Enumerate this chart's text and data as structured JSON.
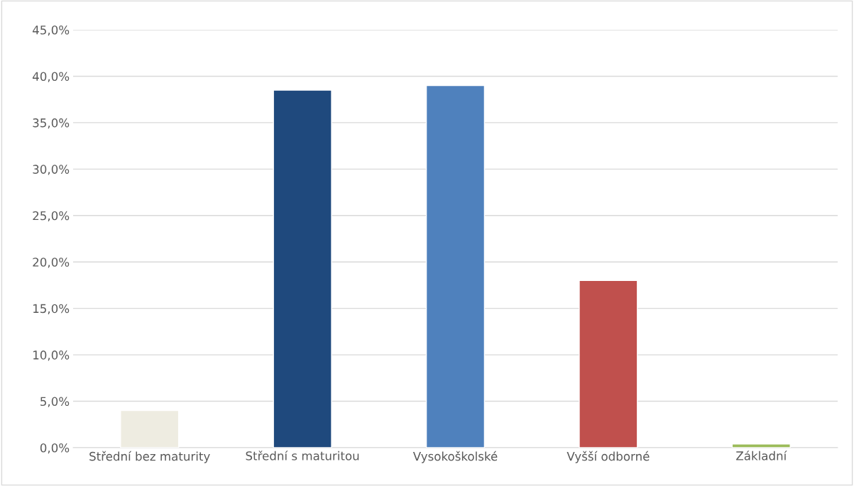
{
  "chart_data": {
    "type": "bar",
    "categories": [
      "Střední bez maturity",
      "Střední s maturitou",
      "Vysokoškolské",
      "Vyšší odborné",
      "Základní"
    ],
    "values": [
      4.0,
      38.5,
      39.0,
      18.0,
      0.4
    ],
    "colors": [
      "#eeece1",
      "#1f497d",
      "#4f81bd",
      "#c0504d",
      "#9bbb59"
    ],
    "ylim": [
      0,
      45
    ],
    "yticks": [
      {
        "value": 0,
        "label": "0,0%"
      },
      {
        "value": 5,
        "label": "5,0%"
      },
      {
        "value": 10,
        "label": "10,0%"
      },
      {
        "value": 15,
        "label": "15,0%"
      },
      {
        "value": 20,
        "label": "20,0%"
      },
      {
        "value": 25,
        "label": "25,0%"
      },
      {
        "value": 30,
        "label": "30,0%"
      },
      {
        "value": 35,
        "label": "35,0%"
      },
      {
        "value": 40,
        "label": "40,0%"
      },
      {
        "value": 45,
        "label": "45,0%"
      }
    ],
    "grid": "y",
    "legend": false
  }
}
